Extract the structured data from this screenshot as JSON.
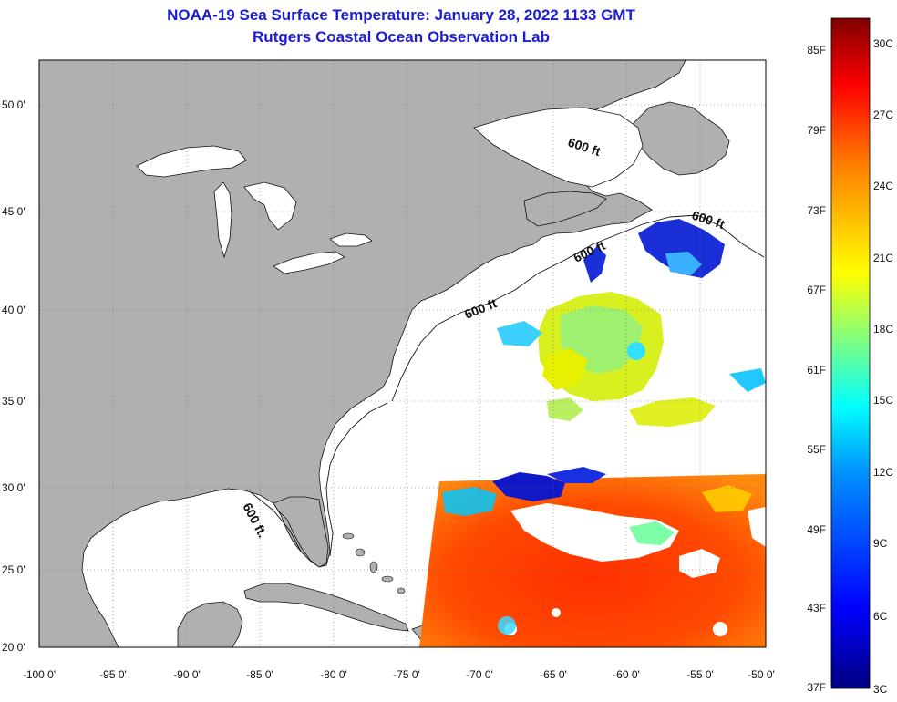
{
  "header": {
    "title": "NOAA-19 Sea Surface Temperature:  January 28, 2022 1133 GMT",
    "subtitle": "Rutgers Coastal Ocean Observation Lab"
  },
  "map": {
    "lat_labels": [
      "50 0'",
      "45 0'",
      "40 0'",
      "35 0'",
      "30 0'",
      "25 0'",
      "20 0'"
    ],
    "lon_labels": [
      "-100 0'",
      "-95 0'",
      "-90 0'",
      "-85 0'",
      "-80 0'",
      "-75 0'",
      "-70 0'",
      "-65 0'",
      "-60 0'",
      "-55 0'",
      "-50 0'"
    ],
    "depth_labels": [
      "600 ft",
      "600 ft",
      "600 ft",
      "600 ft",
      "600 ft."
    ],
    "land_color": "#b0b0b0",
    "ocean_color": "#ffffff"
  },
  "colorbar": {
    "fahrenheit_labels": [
      "85F",
      "79F",
      "73F",
      "67F",
      "61F",
      "55F",
      "49F",
      "43F",
      "37F"
    ],
    "celsius_labels": [
      "30C",
      "27C",
      "24C",
      "21C",
      "18C",
      "15C",
      "12C",
      "9C",
      "6C",
      "3C"
    ],
    "colors": [
      "#000080",
      "#0000ff",
      "#0080ff",
      "#00ffff",
      "#80ff80",
      "#ffff00",
      "#ff8000",
      "#ff0000",
      "#800000"
    ]
  }
}
